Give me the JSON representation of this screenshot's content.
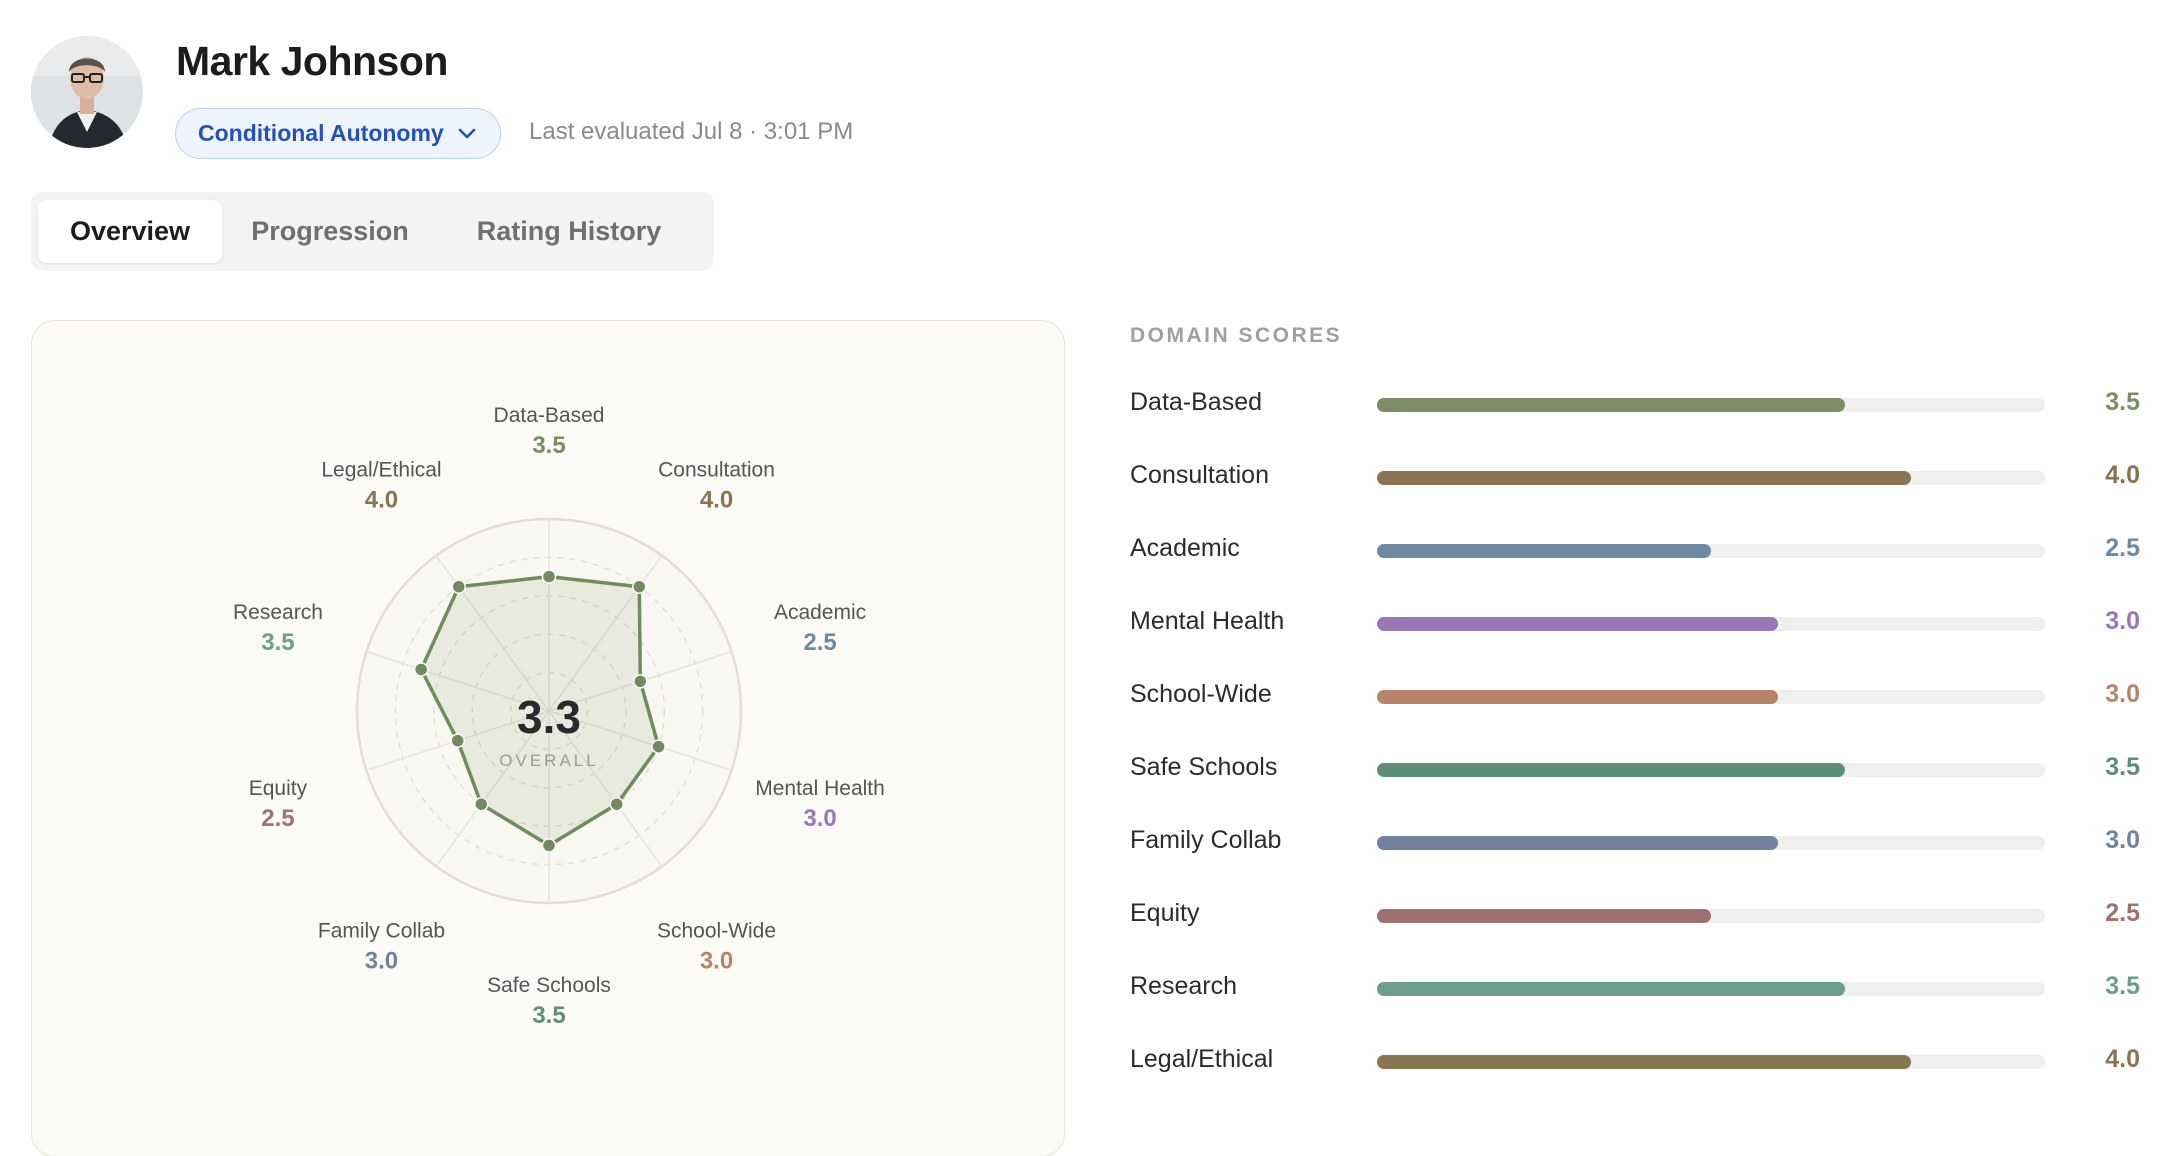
{
  "profile": {
    "name": "Mark Johnson",
    "autonomy_label": "Conditional Autonomy",
    "last_evaluated": "Last evaluated Jul 8 · 3:01 PM"
  },
  "tabs": [
    {
      "label": "Overview",
      "active": true
    },
    {
      "label": "Progression",
      "active": false
    },
    {
      "label": "Rating History",
      "active": false
    }
  ],
  "radar": {
    "overall_value": "3.3",
    "overall_label": "OVERALL",
    "max_score": 5
  },
  "domain_scores_title": "DOMAIN SCORES",
  "chart_data": {
    "type": "radar",
    "title": "",
    "max": 5,
    "categories": [
      "Data-Based",
      "Consultation",
      "Academic",
      "Mental Health",
      "School-Wide",
      "Safe Schools",
      "Family Collab",
      "Equity",
      "Research",
      "Legal/Ethical"
    ],
    "values": [
      3.5,
      4.0,
      2.5,
      3.0,
      3.0,
      3.5,
      3.0,
      2.5,
      3.5,
      4.0
    ],
    "display_values": [
      "3.5",
      "4.0",
      "2.5",
      "3.0",
      "3.0",
      "3.5",
      "3.0",
      "2.5",
      "3.5",
      "4.0"
    ],
    "colors": [
      "#7d8c64",
      "#8a7353",
      "#6f8aa0",
      "#9a77b5",
      "#b88468",
      "#5e8e76",
      "#74809f",
      "#9f7272",
      "#6f9d8c",
      "#867751"
    ],
    "series_color": "#728a5f"
  }
}
